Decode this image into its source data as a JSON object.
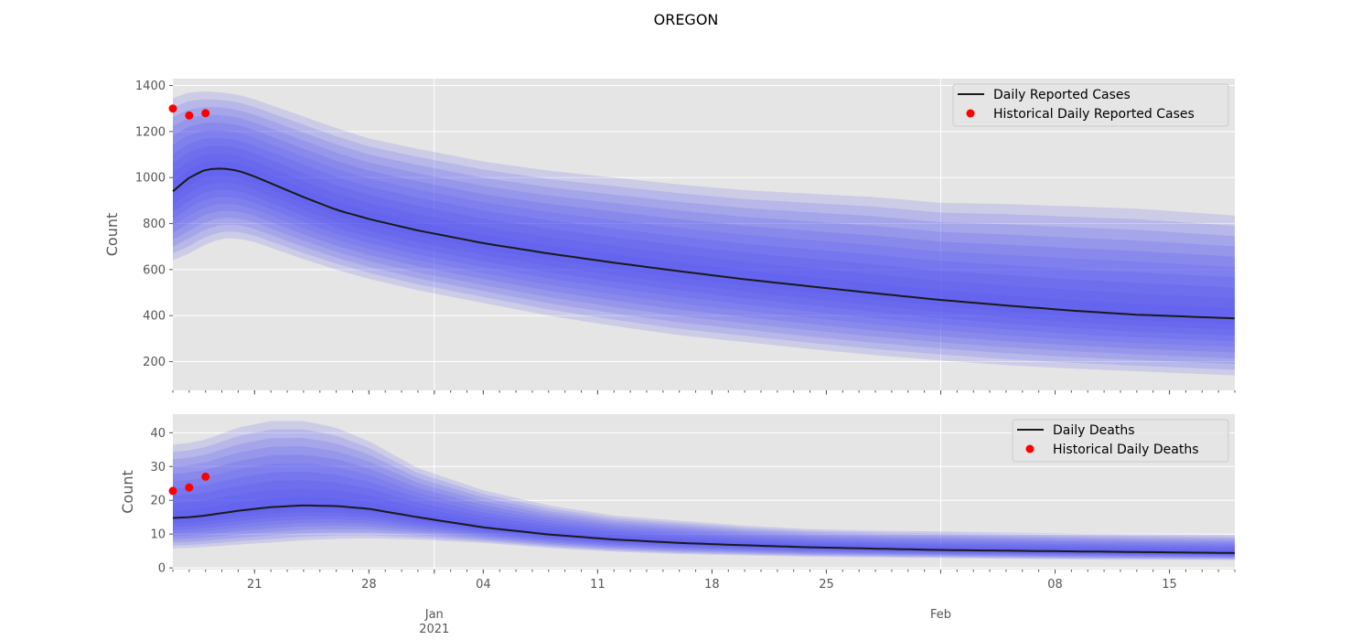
{
  "figure": {
    "title": "OREGON"
  },
  "colors": {
    "panel_bg": "#e5e5e5",
    "grid": "#ffffff",
    "band": "#4a4af0",
    "median": "#1a1a1a",
    "historical": "#ff0000"
  },
  "chart_data": [
    {
      "type": "line",
      "ylabel": "Count",
      "ylim": [
        75,
        1430
      ],
      "yticks": [
        200,
        400,
        600,
        800,
        1000,
        1200,
        1400
      ],
      "x_start": "2020-12-16",
      "x_end": "2021-02-19",
      "band_series": "fan chart of nested quantile intervals around median",
      "median": {
        "name": "Daily Reported Cases",
        "x": [
          "2020-12-16",
          "2020-12-17",
          "2020-12-18",
          "2020-12-19",
          "2020-12-20",
          "2020-12-21",
          "2020-12-22",
          "2020-12-24",
          "2020-12-26",
          "2020-12-28",
          "2020-12-31",
          "2021-01-04",
          "2021-01-08",
          "2021-01-12",
          "2021-01-16",
          "2021-01-20",
          "2021-01-24",
          "2021-01-28",
          "2021-02-01",
          "2021-02-05",
          "2021-02-09",
          "2021-02-13",
          "2021-02-19"
        ],
        "y": [
          940,
          1000,
          1035,
          1040,
          1030,
          1005,
          975,
          915,
          860,
          820,
          770,
          715,
          670,
          630,
          593,
          558,
          527,
          497,
          468,
          444,
          422,
          404,
          388
        ]
      },
      "upper_band": {
        "x": [
          "2020-12-16",
          "2020-12-17",
          "2020-12-18",
          "2020-12-19",
          "2020-12-20",
          "2020-12-21",
          "2020-12-22",
          "2020-12-24",
          "2020-12-26",
          "2020-12-28",
          "2020-12-31",
          "2021-01-04",
          "2021-01-08",
          "2021-01-12",
          "2021-01-16",
          "2021-01-20",
          "2021-01-24",
          "2021-01-28",
          "2021-02-01",
          "2021-02-05",
          "2021-02-09",
          "2021-02-13",
          "2021-02-19"
        ],
        "y": [
          1345,
          1370,
          1375,
          1370,
          1360,
          1340,
          1315,
          1265,
          1215,
          1170,
          1125,
          1070,
          1030,
          1000,
          970,
          945,
          930,
          915,
          890,
          885,
          875,
          865,
          835
        ]
      },
      "lower_band": {
        "x": [
          "2020-12-16",
          "2020-12-17",
          "2020-12-18",
          "2020-12-19",
          "2020-12-20",
          "2020-12-21",
          "2020-12-22",
          "2020-12-24",
          "2020-12-26",
          "2020-12-28",
          "2020-12-31",
          "2021-01-04",
          "2021-01-08",
          "2021-01-12",
          "2021-01-16",
          "2021-01-20",
          "2021-01-24",
          "2021-01-28",
          "2021-02-01",
          "2021-02-05",
          "2021-02-09",
          "2021-02-13",
          "2021-02-19"
        ],
        "y": [
          640,
          670,
          710,
          735,
          735,
          720,
          695,
          645,
          600,
          560,
          510,
          455,
          400,
          355,
          315,
          285,
          255,
          228,
          205,
          185,
          170,
          158,
          140
        ]
      },
      "historical": {
        "name": "Historical Daily Reported Cases",
        "x": [
          "2020-12-16",
          "2020-12-17",
          "2020-12-18"
        ],
        "y": [
          1300,
          1270,
          1280
        ]
      },
      "legend": "upper-right"
    },
    {
      "type": "line",
      "ylabel": "Count",
      "ylim": [
        -0.5,
        45.5
      ],
      "yticks": [
        0,
        10,
        20,
        30,
        40
      ],
      "x_start": "2020-12-16",
      "x_end": "2021-02-19",
      "band_series": "fan chart of nested quantile intervals around median",
      "median": {
        "name": "Daily Deaths",
        "x": [
          "2020-12-16",
          "2020-12-17",
          "2020-12-18",
          "2020-12-20",
          "2020-12-22",
          "2020-12-24",
          "2020-12-26",
          "2020-12-28",
          "2020-12-31",
          "2021-01-04",
          "2021-01-08",
          "2021-01-12",
          "2021-01-16",
          "2021-01-20",
          "2021-01-24",
          "2021-01-28",
          "2021-02-01",
          "2021-02-05",
          "2021-02-09",
          "2021-02-13",
          "2021-02-19"
        ],
        "y": [
          14.8,
          15.0,
          15.5,
          16.9,
          18.0,
          18.5,
          18.3,
          17.5,
          15.0,
          12.0,
          9.9,
          8.4,
          7.4,
          6.7,
          6.1,
          5.7,
          5.3,
          5.1,
          4.9,
          4.7,
          4.4
        ]
      },
      "upper_band": {
        "x": [
          "2020-12-16",
          "2020-12-17",
          "2020-12-18",
          "2020-12-20",
          "2020-12-22",
          "2020-12-24",
          "2020-12-26",
          "2020-12-28",
          "2020-12-31",
          "2021-01-04",
          "2021-01-08",
          "2021-01-12",
          "2021-01-16",
          "2021-01-20",
          "2021-01-24",
          "2021-01-28",
          "2021-02-01",
          "2021-02-05",
          "2021-02-09",
          "2021-02-13",
          "2021-02-19"
        ],
        "y": [
          36.5,
          37,
          38,
          41.5,
          43.5,
          43.5,
          41.5,
          37.5,
          29.5,
          23,
          18.5,
          15.5,
          14,
          12.5,
          11.5,
          11,
          10.8,
          10.5,
          10.2,
          10,
          9.8
        ]
      },
      "lower_band": {
        "x": [
          "2020-12-16",
          "2020-12-17",
          "2020-12-18",
          "2020-12-20",
          "2020-12-22",
          "2020-12-24",
          "2020-12-26",
          "2020-12-28",
          "2020-12-31",
          "2021-01-04",
          "2021-01-08",
          "2021-01-12",
          "2021-01-16",
          "2021-01-20",
          "2021-01-24",
          "2021-01-28",
          "2021-02-01",
          "2021-02-05",
          "2021-02-09",
          "2021-02-13",
          "2021-02-19"
        ],
        "y": [
          5.8,
          5.9,
          6.2,
          6.9,
          7.5,
          8.2,
          8.6,
          8.8,
          8.4,
          7.4,
          5.9,
          4.8,
          4.1,
          3.7,
          3.3,
          3.1,
          2.9,
          2.7,
          2.5,
          2.4,
          2.3
        ]
      },
      "historical": {
        "name": "Historical Daily Deaths",
        "x": [
          "2020-12-16",
          "2020-12-17",
          "2020-12-18"
        ],
        "y": [
          22.8,
          23.8,
          27.0
        ]
      },
      "legend": "upper-right"
    }
  ],
  "x_axis": {
    "tick_labels": [
      {
        "date": "2020-12-21",
        "label": "21"
      },
      {
        "date": "2020-12-28",
        "label": "28"
      },
      {
        "date": "2021-01-04",
        "label": "04"
      },
      {
        "date": "2021-01-11",
        "label": "11"
      },
      {
        "date": "2021-01-18",
        "label": "18"
      },
      {
        "date": "2021-01-25",
        "label": "25"
      },
      {
        "date": "2021-02-08",
        "label": "08"
      },
      {
        "date": "2021-02-15",
        "label": "15"
      }
    ],
    "month_labels": [
      {
        "date": "2021-01-01",
        "label": "Jan",
        "sub": "2021"
      },
      {
        "date": "2021-02-01",
        "label": "Feb",
        "sub": ""
      }
    ]
  }
}
